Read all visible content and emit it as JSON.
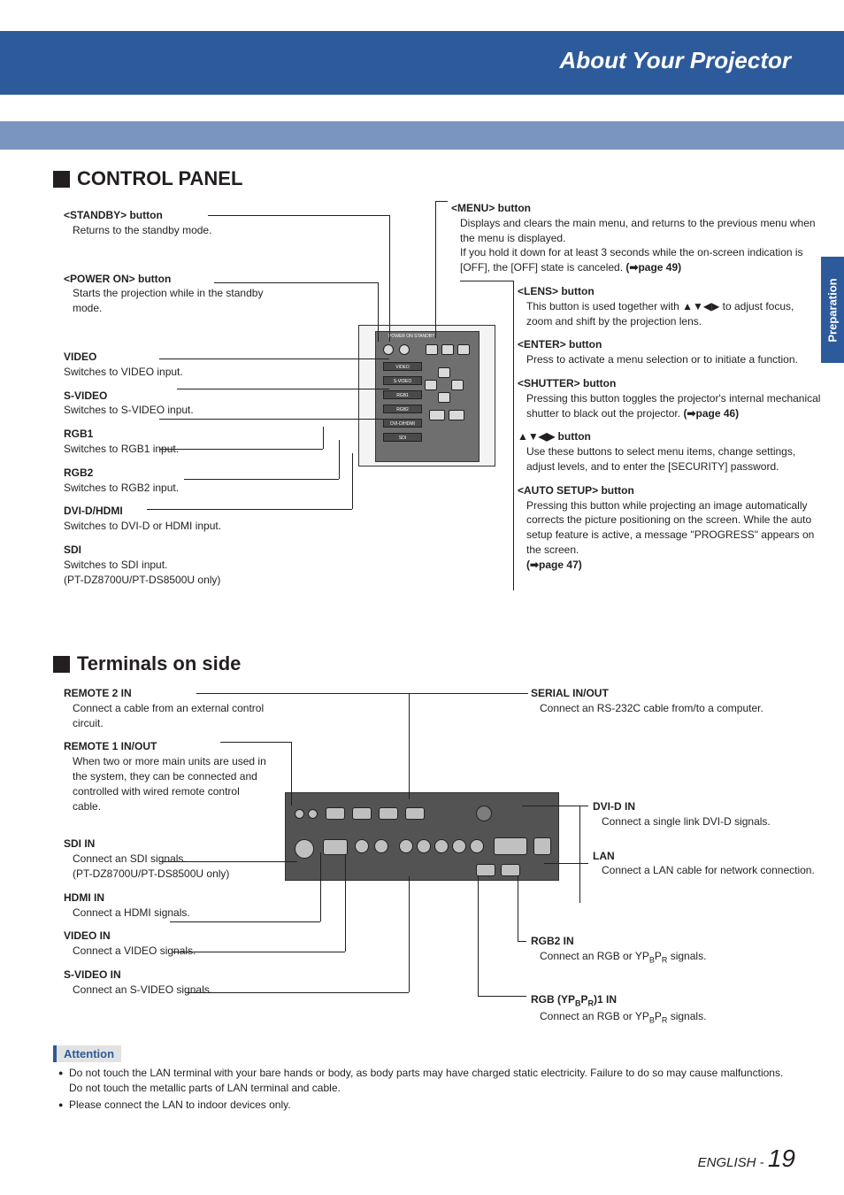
{
  "header": {
    "title": "About Your Projector"
  },
  "side_tab": "Preparation",
  "section1": {
    "title": "CONTROL PANEL"
  },
  "cp_left": {
    "standby": {
      "label": "<STANDBY> button",
      "desc": "Returns to the standby mode."
    },
    "poweron": {
      "label": "<POWER ON> button",
      "desc": "Starts the projection while in the standby mode."
    },
    "video": {
      "label": "VIDEO",
      "desc": "Switches to VIDEO input."
    },
    "svideo": {
      "label": "S-VIDEO",
      "desc": "Switches to S-VIDEO input."
    },
    "rgb1": {
      "label": "RGB1",
      "desc": "Switches to RGB1 input."
    },
    "rgb2": {
      "label": "RGB2",
      "desc": "Switches to RGB2 input."
    },
    "dvi": {
      "label": "DVI-D/HDMI",
      "desc": "Switches to DVI-D or HDMI input."
    },
    "sdi": {
      "label": "SDI",
      "desc": "Switches to SDI input.",
      "desc2": "(PT-DZ8700U/PT-DS8500U only)"
    }
  },
  "cp_right": {
    "menu": {
      "label": "<MENU> button",
      "desc": "Displays and clears the main menu, and returns to the previous menu when the menu is displayed.",
      "desc2": "If you hold it down for at least 3 seconds while the on-screen indication is [OFF], the [OFF] state is canceled. ",
      "ref": "(➡page 49)"
    },
    "lens": {
      "label": "<LENS> button",
      "desc": "This button is used together with ▲▼◀▶ to adjust focus, zoom and shift by the projection lens."
    },
    "enter": {
      "label": "<ENTER> button",
      "desc": "Press to activate a menu selection or to initiate a function."
    },
    "shutter": {
      "label": "<SHUTTER> button",
      "desc": "Pressing this button toggles the projector's internal mechanical shutter to black out the projector. ",
      "ref": "(➡page 46)"
    },
    "arrows": {
      "label": "▲▼◀▶ button",
      "desc": "Use these buttons to select menu items, change settings, adjust levels, and to enter the [SECURITY] password."
    },
    "auto": {
      "label": "<AUTO SETUP> button",
      "desc": "Pressing this button while projecting an image automatically corrects the picture positioning on the screen. While the auto setup feature is active, a message \"PROGRESS\" appears on the screen.",
      "ref": "(➡page 47)"
    }
  },
  "section2": {
    "title": "Terminals on side"
  },
  "t_left": {
    "r2in": {
      "label": "REMOTE 2 IN",
      "desc": "Connect a cable from an external control circuit."
    },
    "r1": {
      "label": "REMOTE 1 IN/OUT",
      "desc": "When two or more main units are used in the system, they can be connected and controlled with wired remote control cable."
    },
    "sdi": {
      "label": "SDI IN",
      "desc": "Connect an SDI signals.",
      "desc2": "(PT-DZ8700U/PT-DS8500U only)"
    },
    "hdmi": {
      "label": "HDMI IN",
      "desc": "Connect a HDMI signals."
    },
    "video": {
      "label": "VIDEO IN",
      "desc": "Connect a VIDEO signals."
    },
    "svideo": {
      "label": "S-VIDEO IN",
      "desc": "Connect an S-VIDEO signals."
    }
  },
  "t_right": {
    "serial": {
      "label": "SERIAL IN/OUT",
      "desc": "Connect an RS-232C cable from/to a computer."
    },
    "dvid": {
      "label": "DVI-D IN",
      "desc": "Connect a single link DVI-D signals."
    },
    "lan": {
      "label": "LAN",
      "desc": "Connect a LAN cable for network connection."
    },
    "rgb2": {
      "label": "RGB2 IN",
      "desc_html": "Connect an RGB or YP<sub>B</sub>P<sub>R</sub> signals."
    },
    "rgb1": {
      "label_html": "RGB (YP<sub>B</sub>P<sub>R</sub>)1 IN",
      "desc_html": "Connect an RGB or YP<sub>B</sub>P<sub>R</sub> signals."
    }
  },
  "attention": {
    "title": "Attention",
    "items": [
      "Do not touch the LAN terminal with your bare hands or body, as body parts may have charged static electricity. Failure to do so may cause malfunctions.\nDo not touch the metallic parts of LAN terminal and cable.",
      "Please connect the LAN to indoor devices only."
    ]
  },
  "footer": {
    "lang": "ENGLISH - ",
    "page": "19"
  },
  "cp_diagram": {
    "header": "POWER ON STANDBY",
    "labels": [
      "VIDEO",
      "S-VIDEO",
      "RGB1",
      "RGB2",
      "DVI-D/HDMI",
      "SDI"
    ]
  }
}
